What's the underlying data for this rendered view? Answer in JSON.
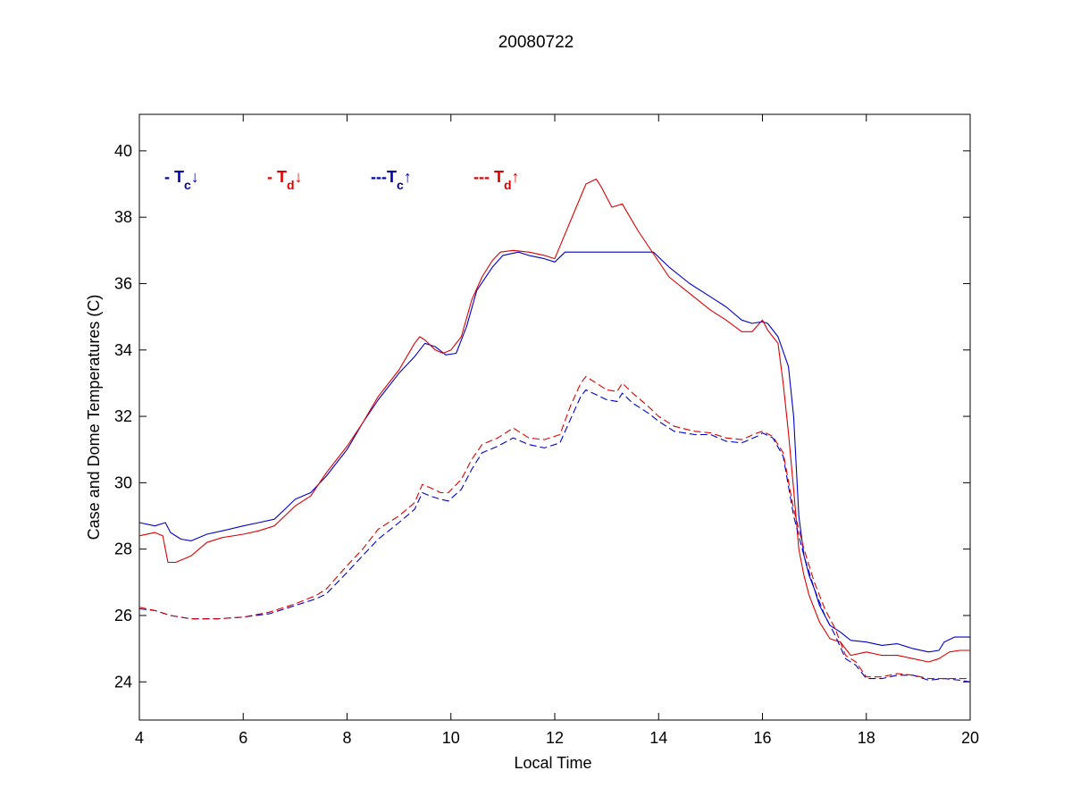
{
  "chart_data": {
    "type": "line",
    "title": "20080722",
    "xlabel": "Local Time",
    "ylabel": "Case and Dome Temperatures (C)",
    "xlim": [
      4,
      20
    ],
    "ylim": [
      22.85,
      41.1
    ],
    "xticks": [
      4,
      6,
      8,
      10,
      12,
      14,
      16,
      18,
      20
    ],
    "yticks": [
      24,
      26,
      28,
      30,
      32,
      34,
      36,
      38,
      40
    ],
    "grid": false,
    "legend_placement": "top-left, inside axes",
    "legend": [
      {
        "prefix": "- ",
        "symbol": "T",
        "subscript": "c",
        "arrow": "↓",
        "color": "#0000aa"
      },
      {
        "prefix": "- ",
        "symbol": "T",
        "subscript": "d",
        "arrow": "↓",
        "color": "#dd0000"
      },
      {
        "prefix": "---",
        "symbol": "T",
        "subscript": "c",
        "arrow": "↑",
        "color": "#0000aa"
      },
      {
        "prefix": "--- ",
        "symbol": "T",
        "subscript": "d",
        "arrow": "↑",
        "color": "#dd0000"
      }
    ],
    "series": [
      {
        "color": "#0000cc",
        "dash": "solid",
        "x": [
          4.0,
          4.3,
          4.5,
          4.6,
          4.8,
          5.0,
          5.3,
          5.6,
          6.0,
          6.3,
          6.6,
          6.8,
          7.0,
          7.3,
          7.6,
          8.0,
          8.3,
          8.6,
          9.0,
          9.3,
          9.5,
          9.7,
          9.9,
          10.1,
          10.3,
          10.5,
          10.8,
          11.0,
          11.3,
          11.5,
          11.8,
          12.0,
          12.2,
          13.0,
          13.5,
          13.9,
          14.2,
          14.6,
          15.0,
          15.3,
          15.6,
          15.8,
          16.0,
          16.1,
          16.3,
          16.5,
          16.6,
          16.7,
          16.8,
          16.9,
          17.0,
          17.1,
          17.3,
          17.5,
          17.7,
          18.0,
          18.3,
          18.6,
          18.9,
          19.2,
          19.4,
          19.5,
          19.7,
          20.0
        ],
        "y": [
          28.8,
          28.7,
          28.8,
          28.5,
          28.3,
          28.25,
          28.45,
          28.55,
          28.7,
          28.8,
          28.9,
          29.2,
          29.5,
          29.7,
          30.2,
          31.0,
          31.8,
          32.5,
          33.3,
          33.8,
          34.2,
          34.1,
          33.85,
          33.9,
          34.7,
          35.8,
          36.5,
          36.85,
          36.95,
          36.85,
          36.75,
          36.65,
          36.95,
          36.95,
          36.95,
          36.95,
          36.5,
          36.0,
          35.6,
          35.3,
          34.9,
          34.8,
          34.85,
          34.8,
          34.4,
          33.5,
          32.0,
          29.0,
          27.8,
          27.2,
          26.8,
          26.3,
          25.7,
          25.5,
          25.25,
          25.2,
          25.1,
          25.15,
          25.0,
          24.9,
          24.95,
          25.2,
          25.35,
          25.35
        ]
      },
      {
        "color": "#dd0000",
        "dash": "solid",
        "x": [
          4.0,
          4.3,
          4.45,
          4.55,
          4.7,
          5.0,
          5.3,
          5.6,
          6.0,
          6.3,
          6.6,
          6.8,
          7.0,
          7.3,
          7.6,
          8.0,
          8.3,
          8.6,
          9.0,
          9.3,
          9.4,
          9.5,
          9.7,
          9.85,
          10.0,
          10.2,
          10.4,
          10.6,
          10.8,
          10.95,
          11.2,
          11.5,
          11.8,
          12.0,
          12.2,
          12.6,
          12.8,
          12.9,
          13.1,
          13.3,
          13.6,
          13.9,
          14.2,
          14.6,
          15.0,
          15.3,
          15.6,
          15.8,
          16.0,
          16.1,
          16.3,
          16.4,
          16.5,
          16.6,
          16.7,
          16.8,
          16.9,
          17.0,
          17.1,
          17.3,
          17.5,
          17.7,
          18.0,
          18.3,
          18.6,
          18.9,
          19.2,
          19.4,
          19.6,
          19.8,
          20.0
        ],
        "y": [
          28.4,
          28.5,
          28.4,
          27.6,
          27.6,
          27.8,
          28.2,
          28.35,
          28.45,
          28.55,
          28.7,
          29.0,
          29.3,
          29.6,
          30.3,
          31.1,
          31.8,
          32.6,
          33.4,
          34.2,
          34.4,
          34.3,
          34.0,
          33.9,
          34.0,
          34.4,
          35.5,
          36.2,
          36.7,
          36.95,
          37.0,
          36.95,
          36.85,
          36.75,
          37.5,
          39.0,
          39.15,
          38.9,
          38.3,
          38.4,
          37.6,
          36.9,
          36.2,
          35.7,
          35.2,
          34.9,
          34.55,
          34.55,
          34.9,
          34.6,
          34.2,
          33.0,
          31.5,
          29.8,
          28.0,
          27.2,
          26.6,
          26.2,
          25.8,
          25.3,
          25.2,
          24.8,
          24.9,
          24.8,
          24.8,
          24.7,
          24.6,
          24.7,
          24.9,
          24.95,
          24.95
        ]
      },
      {
        "color": "#0000cc",
        "dash": "dashed",
        "x": [
          4.0,
          4.3,
          4.6,
          5.0,
          5.5,
          6.0,
          6.5,
          7.0,
          7.4,
          7.6,
          8.0,
          8.3,
          8.6,
          9.0,
          9.3,
          9.45,
          9.6,
          9.8,
          9.95,
          10.2,
          10.4,
          10.6,
          10.9,
          11.2,
          11.5,
          11.8,
          12.1,
          12.3,
          12.5,
          12.6,
          12.8,
          13.0,
          13.2,
          13.3,
          13.5,
          13.8,
          14.0,
          14.3,
          14.7,
          15.0,
          15.3,
          15.6,
          15.9,
          16.0,
          16.2,
          16.4,
          16.6,
          16.8,
          17.0,
          17.2,
          17.4,
          17.6,
          17.8,
          18.0,
          18.3,
          18.6,
          18.9,
          19.2,
          19.5,
          19.8,
          20.0
        ],
        "y": [
          26.2,
          26.15,
          26.0,
          25.9,
          25.9,
          25.95,
          26.05,
          26.3,
          26.5,
          26.65,
          27.3,
          27.8,
          28.3,
          28.8,
          29.2,
          29.7,
          29.6,
          29.5,
          29.45,
          29.8,
          30.4,
          30.9,
          31.1,
          31.35,
          31.15,
          31.05,
          31.2,
          31.9,
          32.6,
          32.8,
          32.65,
          32.5,
          32.45,
          32.7,
          32.4,
          32.1,
          31.85,
          31.55,
          31.45,
          31.45,
          31.25,
          31.2,
          31.4,
          31.5,
          31.35,
          30.8,
          29.0,
          27.8,
          26.8,
          26.0,
          25.4,
          24.7,
          24.5,
          24.1,
          24.1,
          24.2,
          24.2,
          24.05,
          24.1,
          24.05,
          24.0
        ]
      },
      {
        "color": "#dd0000",
        "dash": "dashed",
        "x": [
          4.0,
          4.3,
          4.6,
          5.0,
          5.5,
          6.0,
          6.5,
          7.0,
          7.4,
          7.6,
          8.0,
          8.3,
          8.6,
          9.0,
          9.3,
          9.45,
          9.6,
          9.8,
          9.95,
          10.2,
          10.4,
          10.6,
          10.9,
          11.2,
          11.5,
          11.8,
          12.1,
          12.3,
          12.5,
          12.6,
          12.8,
          13.0,
          13.2,
          13.3,
          13.5,
          13.8,
          14.0,
          14.3,
          14.7,
          15.0,
          15.3,
          15.6,
          15.9,
          16.0,
          16.2,
          16.4,
          16.6,
          16.8,
          17.0,
          17.2,
          17.4,
          17.6,
          17.8,
          18.0,
          18.3,
          18.6,
          18.9,
          19.2,
          19.5,
          19.8,
          20.0
        ],
        "y": [
          26.25,
          26.15,
          26.0,
          25.9,
          25.9,
          25.95,
          26.1,
          26.35,
          26.6,
          26.8,
          27.5,
          28.0,
          28.6,
          29.0,
          29.4,
          29.95,
          29.85,
          29.7,
          29.7,
          30.1,
          30.7,
          31.15,
          31.35,
          31.65,
          31.35,
          31.3,
          31.45,
          32.3,
          33.0,
          33.2,
          33.0,
          32.8,
          32.75,
          33.0,
          32.7,
          32.3,
          32.0,
          31.7,
          31.55,
          31.5,
          31.35,
          31.3,
          31.5,
          31.55,
          31.4,
          30.9,
          29.2,
          28.0,
          27.0,
          26.2,
          25.6,
          24.8,
          24.6,
          24.15,
          24.15,
          24.25,
          24.2,
          24.1,
          24.1,
          24.1,
          24.1
        ]
      }
    ]
  }
}
